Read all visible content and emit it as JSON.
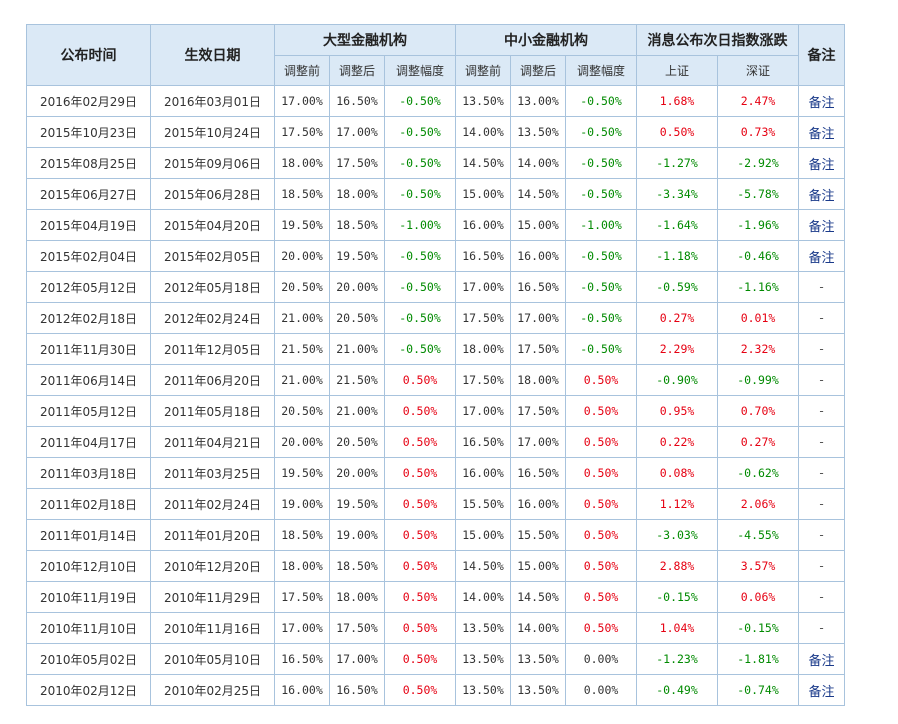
{
  "headers": {
    "publish_time": "公布时间",
    "effective_date": "生效日期",
    "large_inst": "大型金融机构",
    "small_inst": "中小金融机构",
    "next_day_change": "消息公布次日指数涨跌",
    "note": "备注",
    "before": "调整前",
    "after": "调整后",
    "range": "调整幅度",
    "shanghai": "上证",
    "shenzhen": "深证"
  },
  "rows": [
    {
      "pub": "2016年02月29日",
      "eff": "2016年03月01日",
      "lb": "17.00%",
      "la": "16.50%",
      "lr": "-0.50%",
      "sb": "13.50%",
      "sa": "13.00%",
      "sr": "-0.50%",
      "sh": "1.68%",
      "sz": "2.47%",
      "note": "备注"
    },
    {
      "pub": "2015年10月23日",
      "eff": "2015年10月24日",
      "lb": "17.50%",
      "la": "17.00%",
      "lr": "-0.50%",
      "sb": "14.00%",
      "sa": "13.50%",
      "sr": "-0.50%",
      "sh": "0.50%",
      "sz": "0.73%",
      "note": "备注"
    },
    {
      "pub": "2015年08月25日",
      "eff": "2015年09月06日",
      "lb": "18.00%",
      "la": "17.50%",
      "lr": "-0.50%",
      "sb": "14.50%",
      "sa": "14.00%",
      "sr": "-0.50%",
      "sh": "-1.27%",
      "sz": "-2.92%",
      "note": "备注"
    },
    {
      "pub": "2015年06月27日",
      "eff": "2015年06月28日",
      "lb": "18.50%",
      "la": "18.00%",
      "lr": "-0.50%",
      "sb": "15.00%",
      "sa": "14.50%",
      "sr": "-0.50%",
      "sh": "-3.34%",
      "sz": "-5.78%",
      "note": "备注"
    },
    {
      "pub": "2015年04月19日",
      "eff": "2015年04月20日",
      "lb": "19.50%",
      "la": "18.50%",
      "lr": "-1.00%",
      "sb": "16.00%",
      "sa": "15.00%",
      "sr": "-1.00%",
      "sh": "-1.64%",
      "sz": "-1.96%",
      "note": "备注"
    },
    {
      "pub": "2015年02月04日",
      "eff": "2015年02月05日",
      "lb": "20.00%",
      "la": "19.50%",
      "lr": "-0.50%",
      "sb": "16.50%",
      "sa": "16.00%",
      "sr": "-0.50%",
      "sh": "-1.18%",
      "sz": "-0.46%",
      "note": "备注"
    },
    {
      "pub": "2012年05月12日",
      "eff": "2012年05月18日",
      "lb": "20.50%",
      "la": "20.00%",
      "lr": "-0.50%",
      "sb": "17.00%",
      "sa": "16.50%",
      "sr": "-0.50%",
      "sh": "-0.59%",
      "sz": "-1.16%",
      "note": "-"
    },
    {
      "pub": "2012年02月18日",
      "eff": "2012年02月24日",
      "lb": "21.00%",
      "la": "20.50%",
      "lr": "-0.50%",
      "sb": "17.50%",
      "sa": "17.00%",
      "sr": "-0.50%",
      "sh": "0.27%",
      "sz": "0.01%",
      "note": "-"
    },
    {
      "pub": "2011年11月30日",
      "eff": "2011年12月05日",
      "lb": "21.50%",
      "la": "21.00%",
      "lr": "-0.50%",
      "sb": "18.00%",
      "sa": "17.50%",
      "sr": "-0.50%",
      "sh": "2.29%",
      "sz": "2.32%",
      "note": "-"
    },
    {
      "pub": "2011年06月14日",
      "eff": "2011年06月20日",
      "lb": "21.00%",
      "la": "21.50%",
      "lr": "0.50%",
      "sb": "17.50%",
      "sa": "18.00%",
      "sr": "0.50%",
      "sh": "-0.90%",
      "sz": "-0.99%",
      "note": "-"
    },
    {
      "pub": "2011年05月12日",
      "eff": "2011年05月18日",
      "lb": "20.50%",
      "la": "21.00%",
      "lr": "0.50%",
      "sb": "17.00%",
      "sa": "17.50%",
      "sr": "0.50%",
      "sh": "0.95%",
      "sz": "0.70%",
      "note": "-"
    },
    {
      "pub": "2011年04月17日",
      "eff": "2011年04月21日",
      "lb": "20.00%",
      "la": "20.50%",
      "lr": "0.50%",
      "sb": "16.50%",
      "sa": "17.00%",
      "sr": "0.50%",
      "sh": "0.22%",
      "sz": "0.27%",
      "note": "-"
    },
    {
      "pub": "2011年03月18日",
      "eff": "2011年03月25日",
      "lb": "19.50%",
      "la": "20.00%",
      "lr": "0.50%",
      "sb": "16.00%",
      "sa": "16.50%",
      "sr": "0.50%",
      "sh": "0.08%",
      "sz": "-0.62%",
      "note": "-"
    },
    {
      "pub": "2011年02月18日",
      "eff": "2011年02月24日",
      "lb": "19.00%",
      "la": "19.50%",
      "lr": "0.50%",
      "sb": "15.50%",
      "sa": "16.00%",
      "sr": "0.50%",
      "sh": "1.12%",
      "sz": "2.06%",
      "note": "-"
    },
    {
      "pub": "2011年01月14日",
      "eff": "2011年01月20日",
      "lb": "18.50%",
      "la": "19.00%",
      "lr": "0.50%",
      "sb": "15.00%",
      "sa": "15.50%",
      "sr": "0.50%",
      "sh": "-3.03%",
      "sz": "-4.55%",
      "note": "-"
    },
    {
      "pub": "2010年12月10日",
      "eff": "2010年12月20日",
      "lb": "18.00%",
      "la": "18.50%",
      "lr": "0.50%",
      "sb": "14.50%",
      "sa": "15.00%",
      "sr": "0.50%",
      "sh": "2.88%",
      "sz": "3.57%",
      "note": "-"
    },
    {
      "pub": "2010年11月19日",
      "eff": "2010年11月29日",
      "lb": "17.50%",
      "la": "18.00%",
      "lr": "0.50%",
      "sb": "14.00%",
      "sa": "14.50%",
      "sr": "0.50%",
      "sh": "-0.15%",
      "sz": "0.06%",
      "note": "-"
    },
    {
      "pub": "2010年11月10日",
      "eff": "2010年11月16日",
      "lb": "17.00%",
      "la": "17.50%",
      "lr": "0.50%",
      "sb": "13.50%",
      "sa": "14.00%",
      "sr": "0.50%",
      "sh": "1.04%",
      "sz": "-0.15%",
      "note": "-"
    },
    {
      "pub": "2010年05月02日",
      "eff": "2010年05月10日",
      "lb": "16.50%",
      "la": "17.00%",
      "lr": "0.50%",
      "sb": "13.50%",
      "sa": "13.50%",
      "sr": "0.00%",
      "sh": "-1.23%",
      "sz": "-1.81%",
      "note": "备注"
    },
    {
      "pub": "2010年02月12日",
      "eff": "2010年02月25日",
      "lb": "16.00%",
      "la": "16.50%",
      "lr": "0.50%",
      "sb": "13.50%",
      "sa": "13.50%",
      "sr": "0.00%",
      "sh": "-0.49%",
      "sz": "-0.74%",
      "note": "备注"
    }
  ],
  "colors": {
    "header_bg": "#dbe9f6",
    "border": "#a8c3dd",
    "positive": "#e60012",
    "negative": "#008a00",
    "link": "#1a3a8a"
  }
}
